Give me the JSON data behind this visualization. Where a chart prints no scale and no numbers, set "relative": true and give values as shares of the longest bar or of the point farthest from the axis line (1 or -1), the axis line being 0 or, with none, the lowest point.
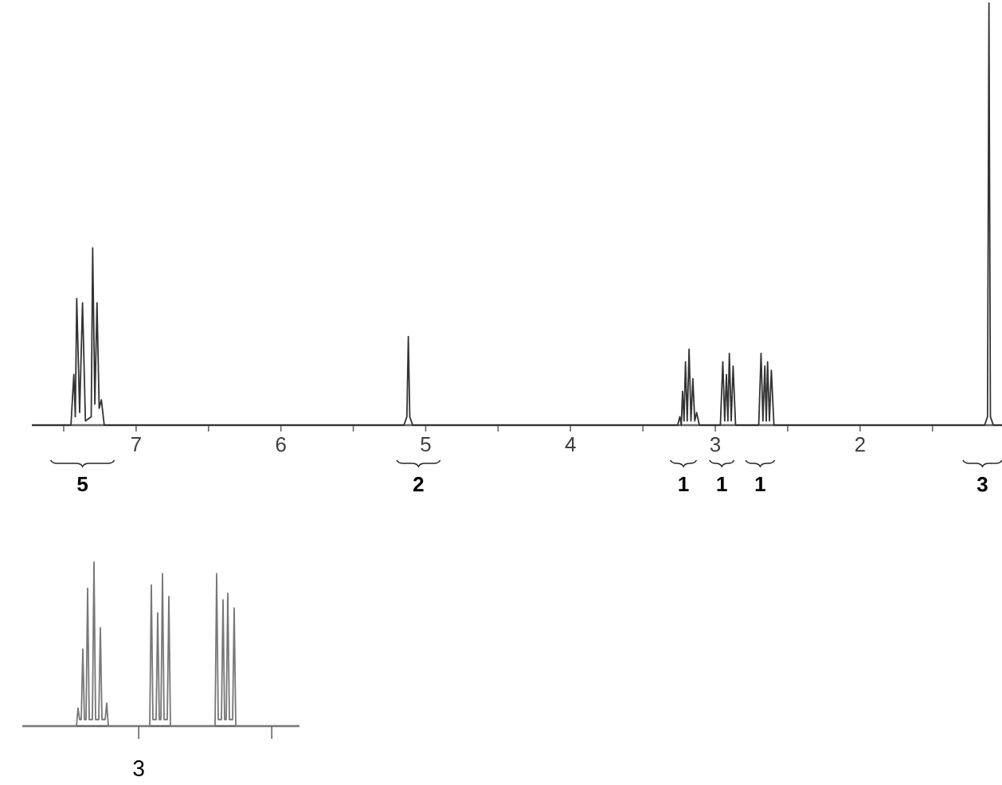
{
  "chart_data": [
    {
      "type": "line",
      "relative": true,
      "xlim": [
        7.72,
        1.02
      ],
      "xticks": [
        7,
        6,
        5,
        4,
        3,
        2,
        {
          "value": 7.5,
          "label": null
        },
        {
          "value": 6.5,
          "label": null
        },
        {
          "value": 5.5,
          "label": null
        },
        {
          "value": 4.5,
          "label": null
        },
        {
          "value": 3.5,
          "label": null
        },
        {
          "value": 2.5,
          "label": null
        },
        {
          "value": 1.5,
          "label": null
        }
      ],
      "series": [
        {
          "color": "#333333",
          "x": [
            7.72,
            7.45,
            7.43,
            7.42,
            7.41,
            7.39,
            7.37,
            7.35,
            7.31,
            7.3,
            7.285,
            7.27,
            7.255,
            7.24,
            7.22,
            5.15,
            5.13,
            5.12,
            5.11,
            5.09,
            3.26,
            3.245,
            3.235,
            3.226,
            3.216,
            3.206,
            3.194,
            3.181,
            3.168,
            3.155,
            3.142,
            3.129,
            3.11,
            2.965,
            2.948,
            2.935,
            2.923,
            2.913,
            2.903,
            2.89,
            2.877,
            2.86,
            2.7,
            2.684,
            2.671,
            2.658,
            2.648,
            2.639,
            2.626,
            2.613,
            2.595,
            1.14,
            1.12,
            1.11,
            1.1,
            1.08,
            1.02
          ],
          "values": [
            0,
            0,
            0.12,
            0.02,
            0.3,
            0.03,
            0.29,
            0.01,
            0.02,
            0.42,
            0.05,
            0.29,
            0.04,
            0.06,
            0,
            0,
            0.02,
            0.21,
            0.02,
            0,
            0,
            0.02,
            0,
            0.08,
            0.01,
            0.15,
            0.01,
            0.18,
            0.01,
            0.11,
            0.01,
            0.03,
            0,
            0,
            0.15,
            0.01,
            0.12,
            0.01,
            0.17,
            0.01,
            0.14,
            0,
            0,
            0.17,
            0.01,
            0.14,
            0.01,
            0.15,
            0.01,
            0.13,
            0,
            0,
            0.02,
            1,
            0.02,
            0,
            0
          ]
        }
      ],
      "annotations": [
        "5",
        "2",
        "1",
        "1",
        "1",
        "3"
      ]
    },
    {
      "type": "line",
      "relative": true,
      "categories": [
        null,
        null,
        null,
        null,
        null,
        null,
        null,
        null,
        null,
        null,
        null,
        null,
        null,
        null,
        null,
        null,
        null,
        null,
        null,
        null,
        null,
        null,
        null,
        null,
        null,
        null,
        null,
        null,
        null,
        null,
        null,
        null,
        null,
        null,
        null,
        null,
        null,
        null,
        null,
        null,
        null,
        null,
        null,
        null,
        null,
        null,
        null,
        null,
        null,
        null,
        null,
        null,
        null,
        null,
        null,
        null,
        null,
        null,
        null,
        null,
        null,
        null,
        null,
        null,
        null,
        null,
        null,
        null,
        null,
        null,
        null,
        null,
        null,
        null,
        null,
        null,
        null,
        null,
        null,
        null,
        null,
        null,
        null,
        null,
        null,
        null,
        null,
        null,
        null,
        null,
        null,
        null,
        null,
        null,
        null,
        null,
        null,
        null,
        null,
        null,
        null,
        null,
        null,
        null,
        null,
        null,
        null,
        null,
        null,
        null,
        null,
        null,
        null,
        null,
        null,
        null,
        null,
        null,
        null,
        null,
        null,
        null,
        null,
        null,
        null,
        null,
        null,
        null,
        null,
        null,
        null,
        null,
        null,
        null,
        null,
        null,
        null,
        null,
        null,
        null,
        null,
        null,
        null,
        null,
        null,
        null,
        null,
        null,
        null,
        null,
        null,
        null,
        null,
        null,
        null,
        null,
        null,
        null,
        null,
        null,
        null,
        null,
        null,
        null,
        null,
        null,
        null,
        null,
        null,
        null,
        null,
        null,
        null,
        null,
        null
      ],
      "series": [
        {
          "color": "#777777",
          "values": [
            0,
            0,
            0,
            0,
            0,
            0,
            0,
            0,
            0,
            0,
            0,
            0,
            0,
            0,
            0,
            0,
            0,
            0,
            0,
            0,
            0,
            0,
            0,
            0,
            0,
            0,
            0,
            0,
            0,
            0,
            0,
            0,
            0,
            0,
            0,
            0.11,
            0.04,
            0.04,
            0.47,
            0.04,
            0.04,
            0.84,
            0.04,
            0.04,
            0.04,
            1,
            0.04,
            0.04,
            0.04,
            0.6,
            0.04,
            0.04,
            0.04,
            0.14,
            0,
            0,
            0,
            0,
            0,
            0,
            0,
            0,
            0,
            0,
            0,
            0,
            0,
            0,
            0,
            0,
            0,
            0,
            0,
            0,
            0,
            0,
            0,
            0,
            0,
            0,
            0,
            0.86,
            0.04,
            0.04,
            0.04,
            0.69,
            0.04,
            0.04,
            0.93,
            0.04,
            0.04,
            0.04,
            0.79,
            0,
            0,
            0,
            0,
            0,
            0,
            0,
            0,
            0,
            0,
            0,
            0,
            0,
            0,
            0,
            0,
            0,
            0,
            0,
            0,
            0,
            0,
            0,
            0,
            0,
            0,
            0,
            0,
            0,
            0.93,
            0.04,
            0.04,
            0.04,
            0.77,
            0.04,
            0.04,
            0.81,
            0.04,
            0.04,
            0.04,
            0.72,
            0,
            0,
            0,
            0,
            0,
            0,
            0,
            0,
            0,
            0,
            0,
            0,
            0,
            0,
            0,
            0,
            0,
            0,
            0,
            0,
            0,
            0,
            0,
            0,
            0,
            0,
            0,
            0,
            0,
            0,
            0,
            0,
            0,
            0,
            0,
            0,
            0,
            0,
            0,
            0,
            0
          ]
        }
      ],
      "annotations": [
        "3"
      ]
    }
  ]
}
